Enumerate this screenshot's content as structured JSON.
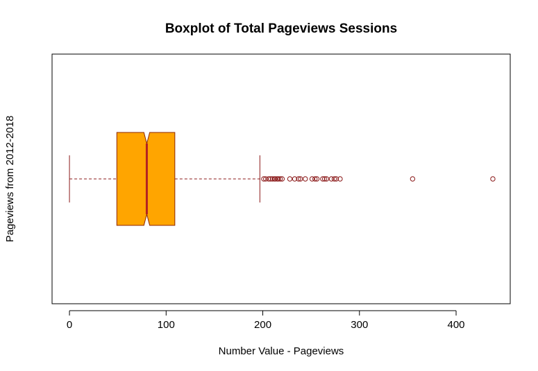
{
  "chart_data": {
    "type": "boxplot",
    "title": "Boxplot of Total Pageviews Sessions",
    "xlabel": "Number Value - Pageviews",
    "ylabel": "Pageviews from 2012-2018",
    "orientation": "horizontal",
    "notched": true,
    "xlim": [
      -18,
      456
    ],
    "xticks": [
      0,
      100,
      200,
      300,
      400
    ],
    "tick_labels": [
      "0",
      "100",
      "200",
      "300",
      "400"
    ],
    "box": {
      "whisker_low": 0,
      "q1": 49,
      "median": 80,
      "q3": 109,
      "whisker_high": 197,
      "notch_low": 77,
      "notch_high": 83
    },
    "outliers": [
      201,
      203,
      206,
      208,
      210,
      212,
      213,
      215,
      216,
      218,
      220,
      228,
      233,
      237,
      239,
      244,
      251,
      254,
      256,
      262,
      264,
      266,
      271,
      274,
      276,
      280,
      355,
      438
    ],
    "colors": {
      "box_fill": "#FFA500",
      "box_border": "#8B2500",
      "median": "#B22222",
      "whisker": "#8B1A1A",
      "outlier": "#8B1A1A"
    },
    "grid": false
  }
}
